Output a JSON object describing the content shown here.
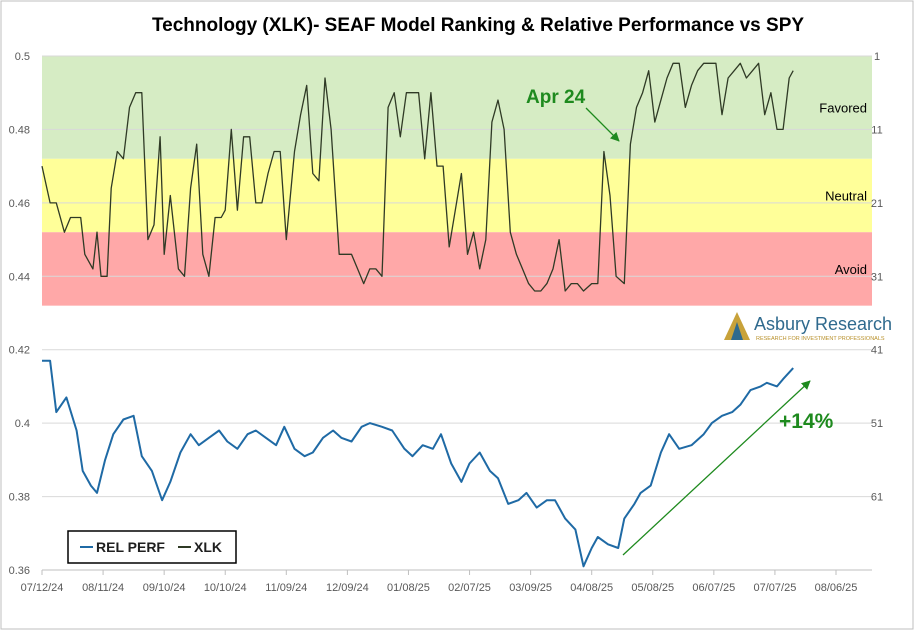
{
  "chart_data": {
    "type": "line",
    "title": "Technology (XLK)- SEAF Model Ranking & Relative Performance vs SPY",
    "x_ticks": [
      "07/12/24",
      "08/11/24",
      "09/10/24",
      "10/10/24",
      "11/09/24",
      "12/09/24",
      "01/08/25",
      "02/07/25",
      "03/09/25",
      "04/08/25",
      "05/08/25",
      "06/07/25",
      "07/07/25",
      "08/06/25"
    ],
    "y_left": {
      "ticks": [
        "0.36",
        "0.38",
        "0.4",
        "0.42",
        "0.44",
        "0.46",
        "0.48",
        "0.5"
      ],
      "range": [
        0.36,
        0.5
      ]
    },
    "y_right": {
      "ticks": [
        "1",
        "11",
        "21",
        "31",
        "41",
        "51",
        "61"
      ],
      "range": [
        1,
        71
      ],
      "inverted": true
    },
    "zones": [
      {
        "label": "Favored",
        "rank_range": [
          1,
          15
        ],
        "color": "#d6ecc4"
      },
      {
        "label": "Neutral",
        "rank_range": [
          15,
          25
        ],
        "color": "#ffff99"
      },
      {
        "label": "Avoid",
        "rank_range": [
          25,
          35
        ],
        "color": "#ffa8a8"
      }
    ],
    "series": [
      {
        "name": "REL PERF",
        "axis": "left",
        "color": "#1f6aa5",
        "points": [
          [
            "07/12/24",
            0.417
          ],
          [
            "07/16/24",
            0.417
          ],
          [
            "07/19/24",
            0.403
          ],
          [
            "07/24/24",
            0.407
          ],
          [
            "07/29/24",
            0.398
          ],
          [
            "08/01/24",
            0.387
          ],
          [
            "08/05/24",
            0.383
          ],
          [
            "08/08/24",
            0.381
          ],
          [
            "08/12/24",
            0.39
          ],
          [
            "08/16/24",
            0.397
          ],
          [
            "08/21/24",
            0.401
          ],
          [
            "08/26/24",
            0.402
          ],
          [
            "08/30/24",
            0.391
          ],
          [
            "09/04/24",
            0.387
          ],
          [
            "09/09/24",
            0.379
          ],
          [
            "09/13/24",
            0.384
          ],
          [
            "09/18/24",
            0.392
          ],
          [
            "09/23/24",
            0.397
          ],
          [
            "09/27/24",
            0.394
          ],
          [
            "10/02/24",
            0.396
          ],
          [
            "10/07/24",
            0.398
          ],
          [
            "10/11/24",
            0.395
          ],
          [
            "10/16/24",
            0.393
          ],
          [
            "10/21/24",
            0.397
          ],
          [
            "10/25/24",
            0.398
          ],
          [
            "10/30/24",
            0.396
          ],
          [
            "11/04/24",
            0.394
          ],
          [
            "11/08/24",
            0.399
          ],
          [
            "11/13/24",
            0.393
          ],
          [
            "11/18/24",
            0.391
          ],
          [
            "11/22/24",
            0.392
          ],
          [
            "11/27/24",
            0.396
          ],
          [
            "12/02/24",
            0.398
          ],
          [
            "12/06/24",
            0.396
          ],
          [
            "12/11/24",
            0.395
          ],
          [
            "12/16/24",
            0.399
          ],
          [
            "12/20/24",
            0.4
          ],
          [
            "12/26/24",
            0.399
          ],
          [
            "12/31/24",
            0.398
          ],
          [
            "01/06/25",
            0.393
          ],
          [
            "01/10/25",
            0.391
          ],
          [
            "01/15/25",
            0.394
          ],
          [
            "01/20/25",
            0.393
          ],
          [
            "01/24/25",
            0.397
          ],
          [
            "01/29/25",
            0.389
          ],
          [
            "02/03/25",
            0.384
          ],
          [
            "02/07/25",
            0.389
          ],
          [
            "02/12/25",
            0.392
          ],
          [
            "02/17/25",
            0.387
          ],
          [
            "02/21/25",
            0.385
          ],
          [
            "02/26/25",
            0.378
          ],
          [
            "03/03/25",
            0.379
          ],
          [
            "03/07/25",
            0.381
          ],
          [
            "03/12/25",
            0.377
          ],
          [
            "03/17/25",
            0.379
          ],
          [
            "03/21/25",
            0.379
          ],
          [
            "03/26/25",
            0.374
          ],
          [
            "03/31/25",
            0.371
          ],
          [
            "04/04/25",
            0.361
          ],
          [
            "04/08/25",
            0.366
          ],
          [
            "04/11/25",
            0.369
          ],
          [
            "04/16/25",
            0.367
          ],
          [
            "04/21/25",
            0.366
          ],
          [
            "04/24/25",
            0.374
          ],
          [
            "04/29/25",
            0.378
          ],
          [
            "05/02/25",
            0.381
          ],
          [
            "05/07/25",
            0.383
          ],
          [
            "05/12/25",
            0.392
          ],
          [
            "05/16/25",
            0.397
          ],
          [
            "05/21/25",
            0.393
          ],
          [
            "05/27/25",
            0.394
          ],
          [
            "06/02/25",
            0.397
          ],
          [
            "06/06/25",
            0.4
          ],
          [
            "06/11/25",
            0.402
          ],
          [
            "06/16/25",
            0.403
          ],
          [
            "06/20/25",
            0.405
          ],
          [
            "06/25/25",
            0.409
          ],
          [
            "06/30/25",
            0.41
          ],
          [
            "07/03/25",
            0.411
          ],
          [
            "07/08/25",
            0.41
          ],
          [
            "07/11/25",
            0.412
          ],
          [
            "07/16/25",
            0.415
          ]
        ]
      },
      {
        "name": "XLK",
        "axis": "right",
        "color": "#2f3a25",
        "points": [
          [
            "07/12/24",
            16
          ],
          [
            "07/16/24",
            21
          ],
          [
            "07/19/24",
            21
          ],
          [
            "07/23/24",
            25
          ],
          [
            "07/26/24",
            23
          ],
          [
            "07/31/24",
            23
          ],
          [
            "08/02/24",
            28
          ],
          [
            "08/06/24",
            30
          ],
          [
            "08/08/24",
            25
          ],
          [
            "08/10/24",
            31
          ],
          [
            "08/13/24",
            31
          ],
          [
            "08/15/24",
            19
          ],
          [
            "08/18/24",
            14
          ],
          [
            "08/21/24",
            15
          ],
          [
            "08/24/24",
            8
          ],
          [
            "08/27/24",
            6
          ],
          [
            "08/30/24",
            6
          ],
          [
            "09/02/24",
            26
          ],
          [
            "09/05/24",
            24
          ],
          [
            "09/08/24",
            12
          ],
          [
            "09/10/24",
            28
          ],
          [
            "09/13/24",
            20
          ],
          [
            "09/17/24",
            30
          ],
          [
            "09/20/24",
            31
          ],
          [
            "09/23/24",
            19
          ],
          [
            "09/26/24",
            13
          ],
          [
            "09/29/24",
            28
          ],
          [
            "10/02/24",
            31
          ],
          [
            "10/05/24",
            23
          ],
          [
            "10/08/24",
            23
          ],
          [
            "10/10/24",
            22
          ],
          [
            "10/13/24",
            11
          ],
          [
            "10/16/24",
            22
          ],
          [
            "10/19/24",
            12
          ],
          [
            "10/22/24",
            12
          ],
          [
            "10/25/24",
            21
          ],
          [
            "10/28/24",
            21
          ],
          [
            "10/31/24",
            17
          ],
          [
            "11/03/24",
            14
          ],
          [
            "11/06/24",
            14
          ],
          [
            "11/09/24",
            26
          ],
          [
            "11/13/24",
            14
          ],
          [
            "11/16/24",
            9
          ],
          [
            "11/19/24",
            5
          ],
          [
            "11/22/24",
            17
          ],
          [
            "11/25/24",
            18
          ],
          [
            "11/28/24",
            4
          ],
          [
            "12/01/24",
            11
          ],
          [
            "12/05/24",
            28
          ],
          [
            "12/08/24",
            28
          ],
          [
            "12/11/24",
            28
          ],
          [
            "12/14/24",
            30
          ],
          [
            "12/17/24",
            32
          ],
          [
            "12/20/24",
            30
          ],
          [
            "12/23/24",
            30
          ],
          [
            "12/26/24",
            31
          ],
          [
            "12/29/24",
            8
          ],
          [
            "01/01/25",
            6
          ],
          [
            "01/04/25",
            12
          ],
          [
            "01/07/25",
            6
          ],
          [
            "01/10/25",
            6
          ],
          [
            "01/13/25",
            6
          ],
          [
            "01/16/25",
            15
          ],
          [
            "01/19/25",
            6
          ],
          [
            "01/22/25",
            16
          ],
          [
            "01/25/25",
            16
          ],
          [
            "01/28/25",
            27
          ],
          [
            "01/31/25",
            22
          ],
          [
            "02/03/25",
            17
          ],
          [
            "02/06/25",
            28
          ],
          [
            "02/09/25",
            25
          ],
          [
            "02/12/25",
            30
          ],
          [
            "02/15/25",
            26
          ],
          [
            "02/18/25",
            10
          ],
          [
            "02/21/25",
            7
          ],
          [
            "02/24/25",
            11
          ],
          [
            "02/27/25",
            25
          ],
          [
            "03/02/25",
            28
          ],
          [
            "03/05/25",
            30
          ],
          [
            "03/08/25",
            32
          ],
          [
            "03/11/25",
            33
          ],
          [
            "03/14/25",
            33
          ],
          [
            "03/17/25",
            32
          ],
          [
            "03/20/25",
            30
          ],
          [
            "03/23/25",
            26
          ],
          [
            "03/26/25",
            33
          ],
          [
            "03/29/25",
            32
          ],
          [
            "04/01/25",
            32
          ],
          [
            "04/04/25",
            33
          ],
          [
            "04/08/25",
            32
          ],
          [
            "04/11/25",
            32
          ],
          [
            "04/14/25",
            14
          ],
          [
            "04/17/25",
            20
          ],
          [
            "04/20/25",
            31
          ],
          [
            "04/24/25",
            32
          ],
          [
            "04/27/25",
            13
          ],
          [
            "04/30/25",
            8
          ],
          [
            "05/03/25",
            6
          ],
          [
            "05/06/25",
            3
          ],
          [
            "05/09/25",
            10
          ],
          [
            "05/12/25",
            7
          ],
          [
            "05/15/25",
            4
          ],
          [
            "05/18/25",
            2
          ],
          [
            "05/21/25",
            2
          ],
          [
            "05/24/25",
            8
          ],
          [
            "05/27/25",
            5
          ],
          [
            "05/30/25",
            3
          ],
          [
            "06/02/25",
            2
          ],
          [
            "06/05/25",
            2
          ],
          [
            "06/08/25",
            2
          ],
          [
            "06/11/25",
            9
          ],
          [
            "06/14/25",
            4
          ],
          [
            "06/17/25",
            3
          ],
          [
            "06/20/25",
            2
          ],
          [
            "06/23/25",
            4
          ],
          [
            "06/26/25",
            3
          ],
          [
            "06/29/25",
            2
          ],
          [
            "07/02/25",
            9
          ],
          [
            "07/05/25",
            6
          ],
          [
            "07/08/25",
            11
          ],
          [
            "07/11/25",
            11
          ],
          [
            "07/14/25",
            4
          ],
          [
            "07/16/25",
            3
          ]
        ]
      }
    ],
    "annotations": {
      "date_callout": "Apr 24",
      "gain_label": "+14%"
    },
    "legend": {
      "position": "bottom-left",
      "entries": [
        "REL PERF",
        "XLK"
      ]
    },
    "grid": true
  },
  "logo": {
    "name": "Asbury Research",
    "tagline": "RESEARCH FOR INVESTMENT PROFESSIONALS"
  }
}
